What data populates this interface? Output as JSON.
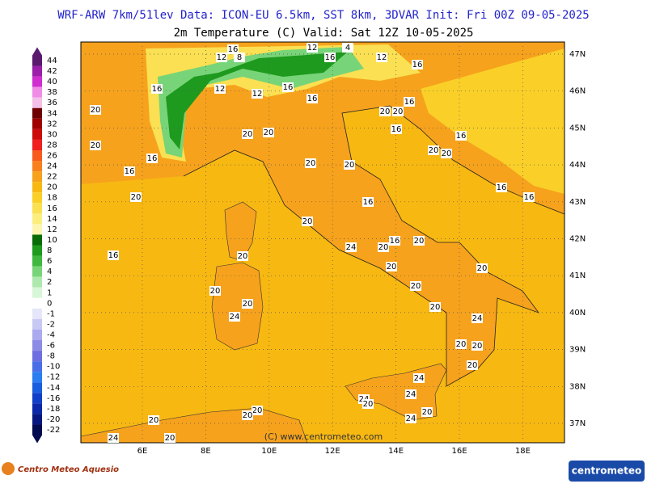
{
  "header": {
    "title": "WRF-ARW 7km/51lev   Data: ICON-EU 6.5km, SST 8km, 3DVAR   Init: Fri 00Z 09-05-2025",
    "subtitle": "2m Temperature (C)  Valid: Sat 12Z 10-05-2025"
  },
  "legend": {
    "levels": [
      {
        "label": 44,
        "color": "#5a1a6e"
      },
      {
        "label": 42,
        "color": "#9b1fa8"
      },
      {
        "label": 40,
        "color": "#d02ed0"
      },
      {
        "label": 38,
        "color": "#f08ce8"
      },
      {
        "label": 36,
        "color": "#f4c0e8"
      },
      {
        "label": 34,
        "color": "#6e0000"
      },
      {
        "label": 32,
        "color": "#a00000"
      },
      {
        "label": 30,
        "color": "#cc0a0a"
      },
      {
        "label": 28,
        "color": "#f02020"
      },
      {
        "label": 26,
        "color": "#f85a1e"
      },
      {
        "label": 24,
        "color": "#f8801e"
      },
      {
        "label": 22,
        "color": "#f6a21c"
      },
      {
        "label": 20,
        "color": "#f8b812"
      },
      {
        "label": 18,
        "color": "#fad028"
      },
      {
        "label": 16,
        "color": "#fae052"
      },
      {
        "label": 14,
        "color": "#fcee7e"
      },
      {
        "label": 12,
        "color": "#fcf6b0"
      },
      {
        "label": 10,
        "color": "#086c08"
      },
      {
        "label": 8,
        "color": "#1e9a1e"
      },
      {
        "label": 6,
        "color": "#40b840"
      },
      {
        "label": 4,
        "color": "#78d478"
      },
      {
        "label": 2,
        "color": "#aee8ae"
      },
      {
        "label": 1,
        "color": "#d8f6d8"
      },
      {
        "label": 0,
        "color": "#ffffff"
      },
      {
        "label": -1,
        "color": "#e6e6fa"
      },
      {
        "label": -2,
        "color": "#c8c8f4"
      },
      {
        "label": -4,
        "color": "#aaaaee"
      },
      {
        "label": -6,
        "color": "#8c8ce6"
      },
      {
        "label": -8,
        "color": "#6e6ee0"
      },
      {
        "label": -10,
        "color": "#4a6ee8"
      },
      {
        "label": -12,
        "color": "#2a7ef0"
      },
      {
        "label": -14,
        "color": "#1a5ee0"
      },
      {
        "label": -16,
        "color": "#1040c8"
      },
      {
        "label": -18,
        "color": "#0a28a8"
      },
      {
        "label": -20,
        "color": "#061880"
      },
      {
        "label": -22,
        "color": "#020a50"
      }
    ]
  },
  "axes": {
    "lat_labels": [
      "47N",
      "46N",
      "45N",
      "44N",
      "43N",
      "42N",
      "41N",
      "40N",
      "39N",
      "38N",
      "37N"
    ],
    "lon_labels": [
      "6E",
      "8E",
      "10E",
      "12E",
      "14E",
      "16E",
      "18E"
    ]
  },
  "contour_labels": [
    16,
    12,
    8,
    16,
    12,
    4,
    16,
    12,
    16,
    16,
    20,
    12,
    12,
    16,
    20,
    20,
    20,
    16,
    20,
    16,
    20,
    16,
    20,
    20,
    16,
    20,
    16,
    16,
    20,
    20,
    16,
    16,
    20,
    20,
    16,
    20,
    24,
    20,
    20,
    20,
    24,
    20,
    20,
    20,
    20,
    24,
    20,
    20,
    20,
    24,
    24,
    24,
    20,
    24,
    20,
    20,
    20,
    20,
    24,
    20,
    16
  ],
  "copyright": "(C) www.centrometeo.com",
  "logos": {
    "left": "Centro Meteo Aquesio",
    "right": "centrometeo"
  }
}
